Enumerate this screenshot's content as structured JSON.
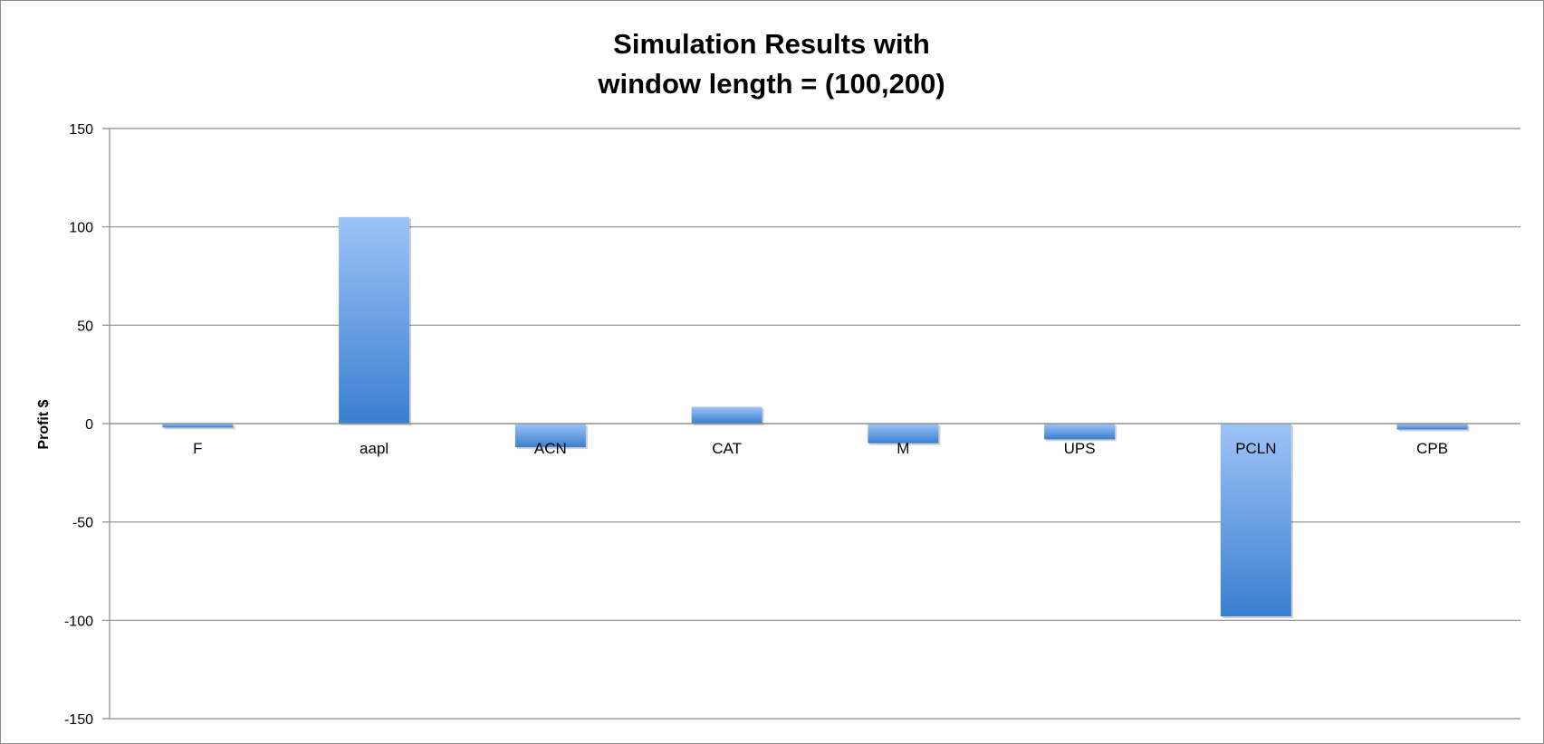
{
  "chart_data": {
    "type": "bar",
    "title_lines": [
      "Simulation Results with",
      "window length = (100,200)"
    ],
    "xlabel": "",
    "ylabel": "Profit $",
    "ylim": [
      -150,
      150
    ],
    "y_ticks": [
      150,
      100,
      50,
      0,
      -50,
      -100,
      -150
    ],
    "categories": [
      "F",
      "aapl",
      "ACN",
      "CAT",
      "M",
      "UPS",
      "PCLN",
      "CPB"
    ],
    "values": [
      -2,
      105,
      -12,
      8.5,
      -10,
      -8,
      -98,
      -3
    ],
    "grid": true,
    "legend": "none",
    "colors": {
      "bar_light": "#9dc3f7",
      "bar_dark": "#3a7fd0",
      "grid": "#8c8c8c",
      "axis": "#8c8c8c"
    }
  }
}
